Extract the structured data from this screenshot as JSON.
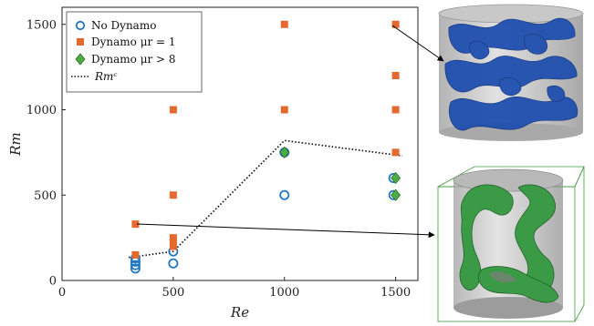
{
  "chart_data": {
    "type": "scatter",
    "xlabel": "Re",
    "ylabel": "Rm",
    "xlim": [
      0,
      1600
    ],
    "ylim": [
      0,
      1600
    ],
    "xticks": [
      0,
      500,
      1000,
      1500
    ],
    "yticks": [
      0,
      500,
      1000,
      1500
    ],
    "grid": false,
    "legend_position": "top-left",
    "series": [
      {
        "name": "No Dynamo",
        "marker": "open-circle",
        "color": "#1f77c4",
        "points": [
          [
            330,
            70
          ],
          [
            330,
            90
          ],
          [
            330,
            110
          ],
          [
            330,
            130
          ],
          [
            500,
            100
          ],
          [
            500,
            170
          ],
          [
            1000,
            500
          ],
          [
            1000,
            750
          ],
          [
            1490,
            500
          ],
          [
            1490,
            600
          ]
        ]
      },
      {
        "name": "Dynamo μr = 1",
        "marker": "square",
        "color": "#e3692e",
        "points": [
          [
            330,
            150
          ],
          [
            330,
            330
          ],
          [
            500,
            200
          ],
          [
            500,
            230
          ],
          [
            500,
            250
          ],
          [
            500,
            500
          ],
          [
            500,
            1000
          ],
          [
            1000,
            1000
          ],
          [
            1000,
            1500
          ],
          [
            1500,
            750
          ],
          [
            1500,
            1000
          ],
          [
            1500,
            1200
          ],
          [
            1500,
            1500
          ]
        ]
      },
      {
        "name": "Dynamo μr > 8",
        "marker": "diamond",
        "color": "#4caa47",
        "points": [
          [
            1000,
            750
          ],
          [
            1500,
            500
          ],
          [
            1500,
            600
          ]
        ]
      },
      {
        "name": "Rmᶜ",
        "marker": "dotted-line",
        "color": "#111111",
        "points": [
          [
            300,
            135
          ],
          [
            330,
            140
          ],
          [
            500,
            170
          ],
          [
            1000,
            820
          ],
          [
            1530,
            730
          ]
        ]
      }
    ],
    "annotations": [
      {
        "from": [
          1500,
          1500
        ],
        "to": "image-top-right"
      },
      {
        "from": [
          330,
          330
        ],
        "to": "image-bottom-right"
      }
    ]
  },
  "images": {
    "top": {
      "name": "blue-flow-structure-image",
      "color": "#1f4fae"
    },
    "bottom": {
      "name": "green-magnetic-field-image",
      "color": "#3a9a45"
    }
  }
}
